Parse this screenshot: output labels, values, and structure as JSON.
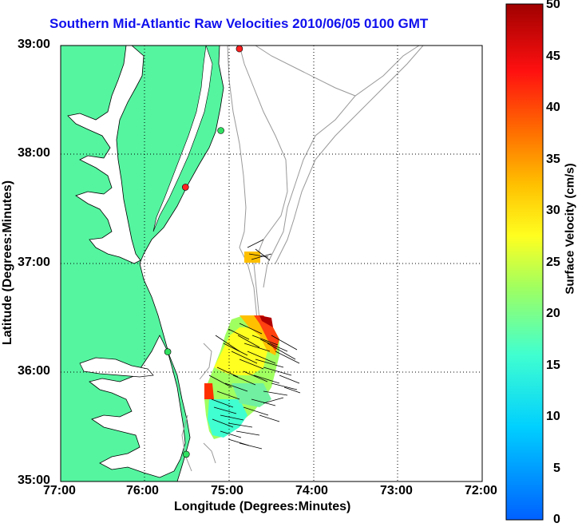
{
  "title": "Southern Mid-Atlantic Raw Velocities 2010/06/05 0100 GMT",
  "x_axis": {
    "label": "Longitude (Degrees:Minutes)",
    "ticks": [
      "77:00",
      "76:00",
      "75:00",
      "74:00",
      "73:00",
      "72:00"
    ]
  },
  "y_axis": {
    "label": "Latitude (Degrees:Minutes)",
    "ticks": [
      "39:00",
      "38:00",
      "37:00",
      "36:00",
      "35:00"
    ]
  },
  "colorbar": {
    "label": "Surface Velocity (cm/s)",
    "ticks": [
      "50",
      "45",
      "40",
      "35",
      "30",
      "25",
      "20",
      "15",
      "10",
      "5",
      "0"
    ],
    "range": [
      0,
      50
    ],
    "colormap": "jet"
  },
  "colors": {
    "land": "#55f5a0",
    "water": "#ffffff",
    "coastline": "#000000",
    "bathymetry": "#999999",
    "title": "#1010ee",
    "grid": "#000000"
  },
  "map": {
    "lon_range": [
      "77:00W",
      "72:00W"
    ],
    "lat_range": [
      "35:00N",
      "39:00N"
    ],
    "grid": "dotted",
    "region": "Chesapeake Bay to Outer Banks",
    "velocity_arrows": "black",
    "stations": [
      {
        "color": "#ff2020",
        "lat": 38.97,
        "lon": -74.88
      },
      {
        "color": "#30e060",
        "lat": 38.22,
        "lon": -75.1
      },
      {
        "color": "#ff2020",
        "lat": 37.7,
        "lon": -75.52
      },
      {
        "color": "#30e060",
        "lat": 36.19,
        "lon": -75.73
      },
      {
        "color": "#30e060",
        "lat": 35.25,
        "lon": -75.51
      }
    ]
  }
}
